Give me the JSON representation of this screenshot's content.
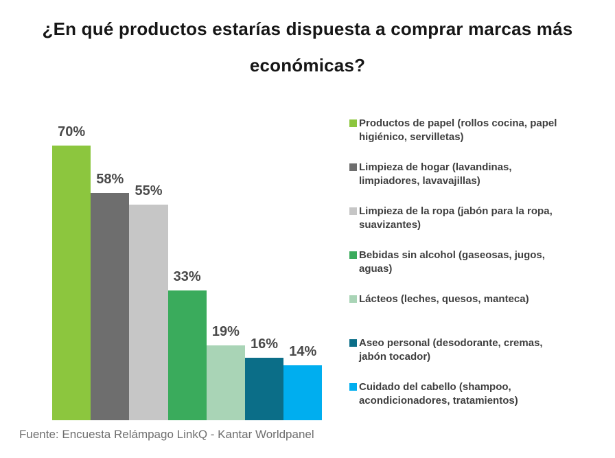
{
  "page": {
    "background": "#ffffff"
  },
  "chart_data": {
    "type": "bar",
    "title": "¿En qué productos estarías dispuesta a comprar marcas más\neconómicas?",
    "values": [
      70,
      58,
      55,
      33,
      19,
      16,
      14
    ],
    "value_labels": [
      "70%",
      "58%",
      "55%",
      "33%",
      "19%",
      "16%",
      "14%"
    ],
    "categories": [
      "Productos de papel (rollos cocina, papel\nhigiénico, servilletas)",
      "Limpieza de hogar (lavandinas,\nlimpiadores, lavavajillas)",
      "Limpieza de la ropa (jabón para la ropa,\nsuavizantes)",
      "Bebidas sin alcohol (gaseosas, jugos,\naguas)",
      "Lácteos (leches, quesos, manteca)",
      "Aseo personal (desodorante, cremas,\njabón tocador)",
      "Cuidado del cabello (shampoo,\nacondicionadores, tratamientos)"
    ],
    "colors": [
      "#8cc63e",
      "#6e6e6e",
      "#c6c6c6",
      "#3aab5c",
      "#a9d4b6",
      "#0b6e88",
      "#00aeef"
    ],
    "ylim": [
      0,
      70
    ],
    "grid": false,
    "axes_visible": false,
    "legend_position": "right",
    "value_label_color": "#4a4a4a",
    "source": "Fuente: Encuesta Relámpago LinkQ - Kantar Worldpanel"
  }
}
